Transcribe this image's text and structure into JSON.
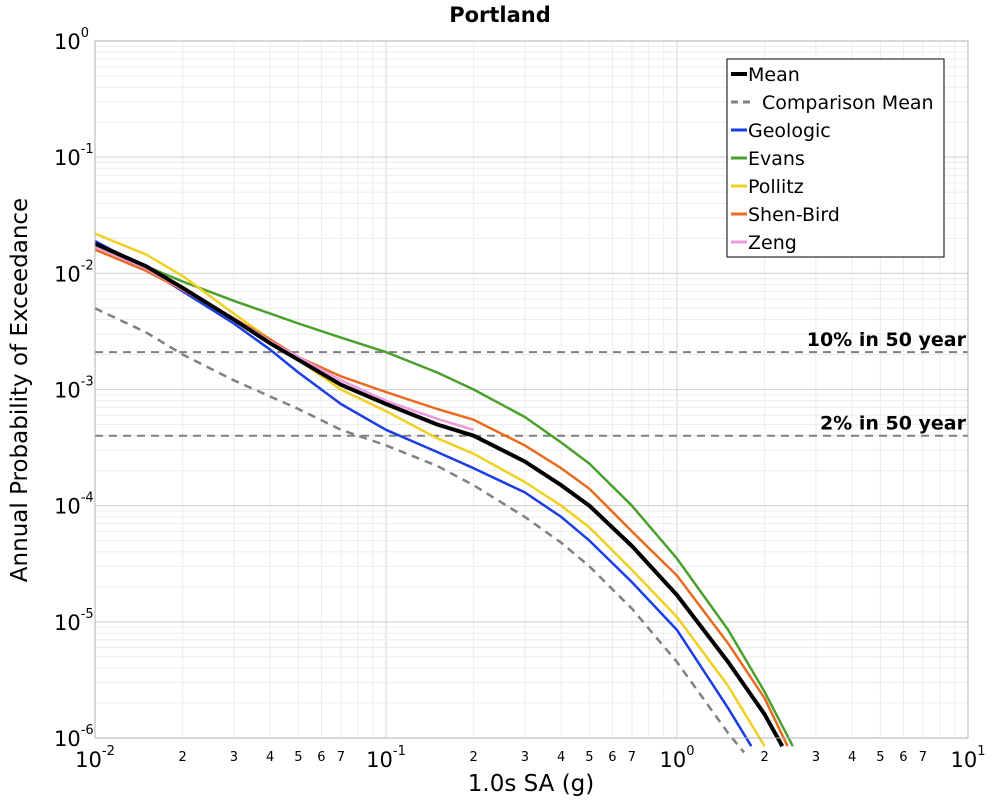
{
  "chart_data": {
    "type": "line",
    "title": "Portland",
    "xlabel": "1.0s SA (g)",
    "ylabel": "Annual Probability of Exceedance",
    "xscale": "log",
    "yscale": "log",
    "xlim": [
      0.01,
      10
    ],
    "ylim": [
      1e-06,
      1
    ],
    "grid": true,
    "legend_position": "top-right",
    "x_major_ticks": [
      {
        "value": 0.01,
        "base": "10",
        "exp": "-2"
      },
      {
        "value": 0.1,
        "base": "10",
        "exp": "-1"
      },
      {
        "value": 1,
        "base": "10",
        "exp": "0"
      },
      {
        "value": 10,
        "base": "10",
        "exp": "1"
      }
    ],
    "x_minor_ticks": [
      {
        "value": 0.02,
        "label": "2"
      },
      {
        "value": 0.03,
        "label": "3"
      },
      {
        "value": 0.04,
        "label": "4"
      },
      {
        "value": 0.05,
        "label": "5"
      },
      {
        "value": 0.06,
        "label": "6"
      },
      {
        "value": 0.07,
        "label": "7"
      },
      {
        "value": 0.2,
        "label": "2"
      },
      {
        "value": 0.3,
        "label": "3"
      },
      {
        "value": 0.4,
        "label": "4"
      },
      {
        "value": 0.5,
        "label": "5"
      },
      {
        "value": 0.6,
        "label": "6"
      },
      {
        "value": 0.7,
        "label": "7"
      },
      {
        "value": 2,
        "label": "2"
      },
      {
        "value": 3,
        "label": "3"
      },
      {
        "value": 4,
        "label": "4"
      },
      {
        "value": 5,
        "label": "5"
      },
      {
        "value": 6,
        "label": "6"
      },
      {
        "value": 7,
        "label": "7"
      }
    ],
    "y_major_ticks": [
      {
        "value": 1e-06,
        "base": "10",
        "exp": "-6"
      },
      {
        "value": 1e-05,
        "base": "10",
        "exp": "-5"
      },
      {
        "value": 0.0001,
        "base": "10",
        "exp": "-4"
      },
      {
        "value": 0.001,
        "base": "10",
        "exp": "-3"
      },
      {
        "value": 0.01,
        "base": "10",
        "exp": "-2"
      },
      {
        "value": 0.1,
        "base": "10",
        "exp": "-1"
      },
      {
        "value": 1,
        "base": "10",
        "exp": "0"
      }
    ],
    "reference_lines": [
      {
        "label": "10% in 50 year",
        "y": 0.0021,
        "color": "#808080",
        "style": "dashed"
      },
      {
        "label": "2% in 50 year",
        "y": 0.0004,
        "color": "#808080",
        "style": "dashed"
      }
    ],
    "series": [
      {
        "name": "Mean",
        "color": "#000000",
        "style": "solid",
        "weight": "bold",
        "x": [
          0.01,
          0.015,
          0.02,
          0.03,
          0.04,
          0.05,
          0.07,
          0.1,
          0.15,
          0.2,
          0.3,
          0.4,
          0.5,
          0.7,
          1.0,
          1.5,
          2.0,
          2.3
        ],
        "y": [
          0.018,
          0.0115,
          0.0075,
          0.004,
          0.0025,
          0.0018,
          0.0011,
          0.00075,
          0.0005,
          0.0004,
          0.00024,
          0.00015,
          0.0001,
          4.5e-05,
          1.7e-05,
          4.5e-06,
          1.6e-06,
          8.5e-07
        ]
      },
      {
        "name": "Comparison Mean",
        "color": "#808080",
        "style": "dashed",
        "weight": "normal",
        "x": [
          0.01,
          0.015,
          0.02,
          0.03,
          0.05,
          0.07,
          0.1,
          0.15,
          0.2,
          0.3,
          0.4,
          0.5,
          0.7,
          1.0,
          1.5,
          1.7
        ],
        "y": [
          0.005,
          0.0031,
          0.002,
          0.0012,
          0.00068,
          0.00045,
          0.00033,
          0.00022,
          0.00015,
          8e-05,
          4.8e-05,
          3e-05,
          1.3e-05,
          4.5e-06,
          1.1e-06,
          7.5e-07
        ]
      },
      {
        "name": "Geologic",
        "color": "#1a3ee6",
        "style": "solid",
        "weight": "normal",
        "x": [
          0.01,
          0.015,
          0.02,
          0.03,
          0.04,
          0.05,
          0.07,
          0.1,
          0.15,
          0.2,
          0.3,
          0.4,
          0.5,
          0.7,
          1.0,
          1.5,
          1.8
        ],
        "y": [
          0.019,
          0.011,
          0.007,
          0.0037,
          0.0022,
          0.0014,
          0.00075,
          0.00045,
          0.00029,
          0.00021,
          0.00013,
          8e-05,
          5e-05,
          2.2e-05,
          8.5e-06,
          1.8e-06,
          8.5e-07
        ]
      },
      {
        "name": "Evans",
        "color": "#4aa02c",
        "style": "solid",
        "weight": "normal",
        "x": [
          0.01,
          0.015,
          0.02,
          0.03,
          0.04,
          0.05,
          0.07,
          0.1,
          0.15,
          0.2,
          0.3,
          0.4,
          0.5,
          0.7,
          1.0,
          1.5,
          2.0,
          2.5
        ],
        "y": [
          0.017,
          0.0115,
          0.0085,
          0.0058,
          0.0045,
          0.0037,
          0.0028,
          0.0021,
          0.0014,
          0.001,
          0.00058,
          0.00035,
          0.00023,
          0.0001,
          3.5e-05,
          8.5e-06,
          2.5e-06,
          8.5e-07
        ]
      },
      {
        "name": "Pollitz",
        "color": "#f0d020",
        "style": "solid",
        "weight": "normal",
        "x": [
          0.01,
          0.015,
          0.02,
          0.03,
          0.04,
          0.05,
          0.07,
          0.1,
          0.15,
          0.2,
          0.3,
          0.4,
          0.5,
          0.7,
          1.0,
          1.5,
          2.0
        ],
        "y": [
          0.022,
          0.0145,
          0.0095,
          0.0045,
          0.0027,
          0.0018,
          0.001,
          0.00065,
          0.00038,
          0.00028,
          0.00016,
          0.0001,
          6.5e-05,
          2.8e-05,
          1.1e-05,
          2.8e-06,
          8.5e-07
        ]
      },
      {
        "name": "Shen-Bird",
        "color": "#ea6a20",
        "style": "solid",
        "weight": "normal",
        "x": [
          0.01,
          0.015,
          0.02,
          0.03,
          0.04,
          0.05,
          0.07,
          0.1,
          0.15,
          0.2,
          0.3,
          0.4,
          0.5,
          0.7,
          1.0,
          1.5,
          2.0,
          2.4
        ],
        "y": [
          0.016,
          0.0105,
          0.0072,
          0.0041,
          0.0027,
          0.0019,
          0.0013,
          0.00095,
          0.00068,
          0.00055,
          0.00033,
          0.00021,
          0.00014,
          6e-05,
          2.5e-05,
          6.5e-06,
          2.2e-06,
          8.5e-07
        ]
      },
      {
        "name": "Zeng",
        "color": "#ee99dd",
        "style": "solid",
        "weight": "normal",
        "x": [
          0.01,
          0.015,
          0.02,
          0.03,
          0.04,
          0.05,
          0.07,
          0.1,
          0.15,
          0.2
        ],
        "y": [
          0.017,
          0.011,
          0.0073,
          0.0041,
          0.0026,
          0.0019,
          0.0012,
          0.0008,
          0.00056,
          0.00045
        ]
      }
    ]
  }
}
